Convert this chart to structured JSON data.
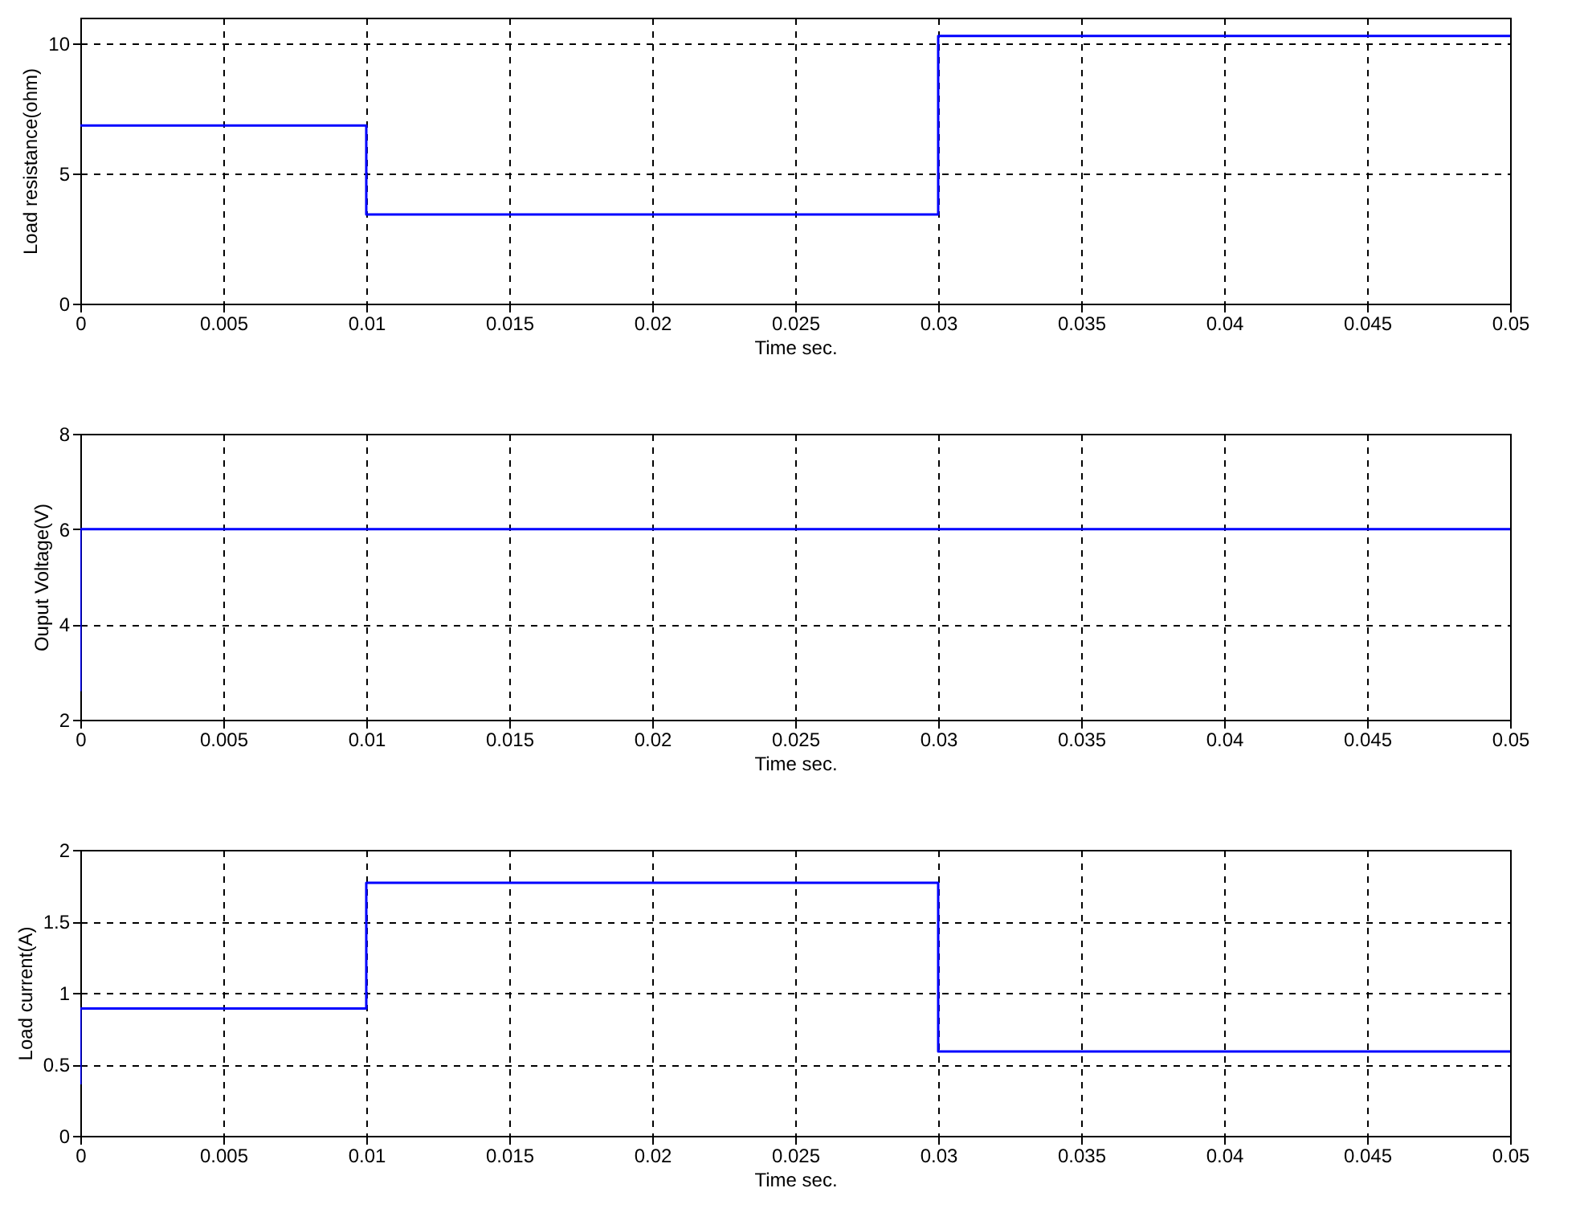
{
  "chart_data": [
    {
      "type": "step",
      "xlabel": "Time   sec.",
      "ylabel": "Load resistance(ohm)",
      "x": [
        0,
        0.01,
        0.03,
        0.05
      ],
      "series": [
        {
          "color": "#0000ff",
          "values": [
            6.85,
            3.43,
            10.3,
            10.3
          ]
        }
      ],
      "xlim": [
        0,
        0.05
      ],
      "xticks": [
        0,
        0.005,
        0.01,
        0.015,
        0.02,
        0.025,
        0.03,
        0.035,
        0.04,
        0.045,
        0.05
      ],
      "ylim": [
        0,
        11
      ],
      "yticks": [
        0,
        5,
        10
      ],
      "grid": true
    },
    {
      "type": "step",
      "xlabel": "Time   sec.",
      "ylabel": "Ouput Voltage(V)",
      "x": [
        0,
        0,
        0.05
      ],
      "series": [
        {
          "color": "#0000ff",
          "values": [
            2.6,
            6,
            6
          ]
        }
      ],
      "xlim": [
        0,
        0.05
      ],
      "xticks": [
        0,
        0.005,
        0.01,
        0.015,
        0.02,
        0.025,
        0.03,
        0.035,
        0.04,
        0.045,
        0.05
      ],
      "ylim": [
        2,
        8
      ],
      "yticks": [
        2,
        4,
        6,
        8
      ],
      "grid": true
    },
    {
      "type": "step",
      "xlabel": "Time   sec.",
      "ylabel": "Load current(A)",
      "x": [
        0,
        0,
        0.01,
        0.03,
        0.05
      ],
      "series": [
        {
          "color": "#0000ff",
          "values": [
            0.36,
            0.89,
            1.77,
            0.59,
            0.59
          ]
        }
      ],
      "xlim": [
        0,
        0.05
      ],
      "xticks": [
        0,
        0.005,
        0.01,
        0.015,
        0.02,
        0.025,
        0.03,
        0.035,
        0.04,
        0.045,
        0.05
      ],
      "ylim": [
        0,
        2
      ],
      "yticks": [
        0,
        0.5,
        1,
        1.5,
        2
      ],
      "grid": true
    }
  ]
}
